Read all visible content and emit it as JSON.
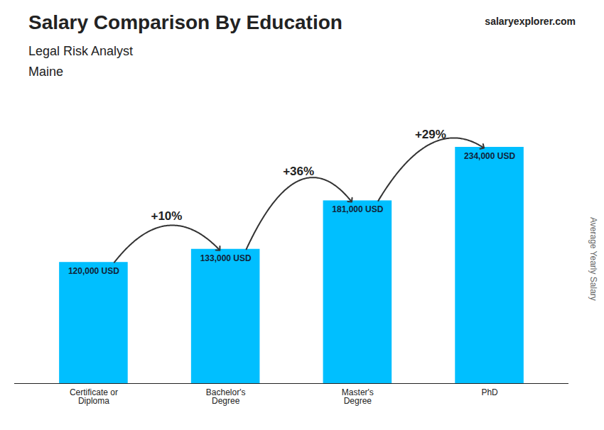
{
  "chart_data": {
    "type": "bar",
    "title": "Salary Comparison By Education",
    "subtitle": "Legal Risk Analyst",
    "ylabel": "Average Yearly Salary",
    "categories": [
      "Certificate or\nDiploma",
      "Bachelor's\nDegree",
      "Master's\nDegree",
      "PhD"
    ],
    "values": [
      120000,
      133000,
      181000,
      234000
    ],
    "value_labels": [
      "120,000 USD",
      "133,000 USD",
      "181,000 USD",
      "234,000 USD"
    ],
    "data_labels": true,
    "color": "#00BFFF",
    "ylim": [
      0,
      260000
    ],
    "tick_labels": "x",
    "grid": false,
    "annotations": [
      {
        "text": "Maine"
      },
      {
        "text": "salaryexplorer.com"
      },
      {
        "text": "+10%",
        "from": "Certificate or\nDiploma",
        "to": "Bachelor's\nDegree"
      },
      {
        "text": "+36%",
        "from": "Bachelor's\nDegree",
        "to": "Master's\nDegree"
      },
      {
        "text": "+29%",
        "from": "Master's\nDegree",
        "to": "PhD"
      }
    ]
  }
}
